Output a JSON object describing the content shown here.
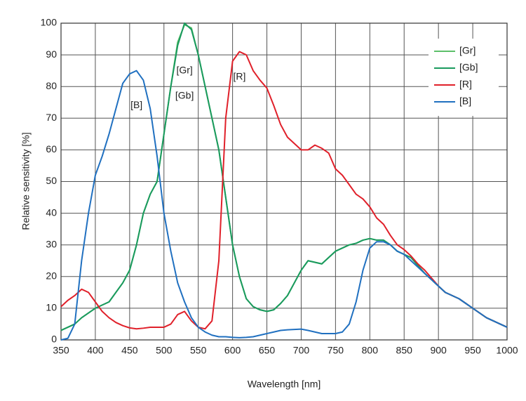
{
  "chart_data": {
    "type": "line",
    "xlabel": "Wavelength [nm]",
    "ylabel": "Relative sensitivity [%]",
    "x": [
      350,
      360,
      370,
      380,
      390,
      400,
      410,
      420,
      430,
      440,
      450,
      460,
      470,
      480,
      490,
      500,
      510,
      520,
      530,
      540,
      550,
      560,
      570,
      580,
      590,
      600,
      610,
      620,
      630,
      640,
      650,
      660,
      670,
      680,
      690,
      700,
      710,
      720,
      730,
      740,
      750,
      760,
      770,
      780,
      790,
      800,
      810,
      820,
      830,
      840,
      850,
      860,
      870,
      880,
      890,
      900,
      910,
      920,
      930,
      940,
      950,
      960,
      970,
      980,
      990,
      1000
    ],
    "series": [
      {
        "name": "[Gr]",
        "color": "#5cbf6a",
        "values": [
          3,
          4,
          5,
          7,
          8.5,
          10,
          11,
          12,
          15,
          18,
          22,
          30,
          40,
          46,
          50,
          65,
          80,
          94,
          99.5,
          98.5,
          90,
          80,
          70,
          60,
          45,
          30,
          20,
          13,
          10.5,
          9.5,
          9,
          9.5,
          11.5,
          14,
          18,
          22,
          25,
          24.5,
          24,
          26,
          28,
          29,
          30,
          30.5,
          31.5,
          32,
          31.5,
          31.5,
          30,
          28,
          27,
          26,
          23.5,
          21,
          19,
          17,
          15,
          14,
          13,
          11.5,
          10,
          8.5,
          7,
          6,
          5,
          4
        ]
      },
      {
        "name": "[Gb]",
        "color": "#1a9a5e",
        "values": [
          3,
          4,
          5,
          7,
          8.5,
          10,
          11,
          12,
          15,
          18,
          22,
          30,
          40,
          46,
          50,
          65,
          80,
          93,
          100,
          98,
          90,
          80,
          70,
          60,
          45,
          30,
          20,
          13,
          10.5,
          9.5,
          9,
          9.5,
          11.5,
          14,
          18,
          22,
          25,
          24.5,
          24,
          26,
          28,
          29,
          30,
          30.5,
          31.5,
          32,
          31.5,
          31.5,
          30,
          28,
          27,
          26,
          23.5,
          21,
          19,
          17,
          15,
          14,
          13,
          11.5,
          10,
          8.5,
          7,
          6,
          5,
          4
        ]
      },
      {
        "name": "[R]",
        "color": "#e0202a",
        "values": [
          10.5,
          12.5,
          14,
          16,
          15,
          12,
          9,
          7,
          5.5,
          4.5,
          3.8,
          3.5,
          3.7,
          4,
          4,
          4,
          5,
          8,
          9,
          6,
          4,
          3.5,
          6,
          25,
          70,
          88,
          91,
          90,
          85,
          82,
          79.5,
          74,
          68,
          64,
          62,
          60,
          60,
          61.5,
          60.5,
          59,
          54,
          52,
          49,
          46,
          44.5,
          42,
          38.5,
          36.5,
          33,
          30,
          28.5,
          26.5,
          24,
          22,
          19.5,
          17,
          15,
          14,
          13,
          11.5,
          10,
          8.5,
          7,
          6,
          5,
          4
        ]
      },
      {
        "name": "[B]",
        "color": "#2070c0",
        "values": [
          0,
          0.5,
          5,
          25,
          40,
          52,
          58,
          65,
          73,
          81,
          84,
          85,
          82,
          73,
          58,
          40,
          28,
          18,
          12,
          7,
          4,
          2.5,
          1.5,
          1,
          1,
          0.8,
          0.7,
          0.8,
          1,
          1.5,
          2,
          2.5,
          3,
          3.2,
          3.3,
          3.4,
          3,
          2.5,
          2,
          2,
          2,
          2.5,
          5,
          12,
          22,
          29,
          31,
          31,
          30,
          28,
          27,
          25,
          23,
          21,
          19,
          17,
          15,
          14,
          13,
          11.5,
          10,
          8.5,
          7,
          6,
          5,
          4
        ]
      }
    ],
    "annotations": [
      {
        "text": "[B]",
        "x": 460,
        "y": 74
      },
      {
        "text": "[Gr]",
        "x": 530,
        "y": 85
      },
      {
        "text": "[Gb]",
        "x": 530,
        "y": 77
      },
      {
        "text": "[R]",
        "x": 610,
        "y": 83
      }
    ],
    "xlim": [
      350,
      1000
    ],
    "xticks": [
      350,
      400,
      450,
      500,
      550,
      600,
      650,
      700,
      750,
      800,
      850,
      900,
      950,
      1000
    ],
    "ylim": [
      0,
      100
    ],
    "yticks": [
      0,
      10,
      20,
      30,
      40,
      50,
      60,
      70,
      80,
      90,
      100
    ],
    "grid": true,
    "legend": "upper right"
  }
}
